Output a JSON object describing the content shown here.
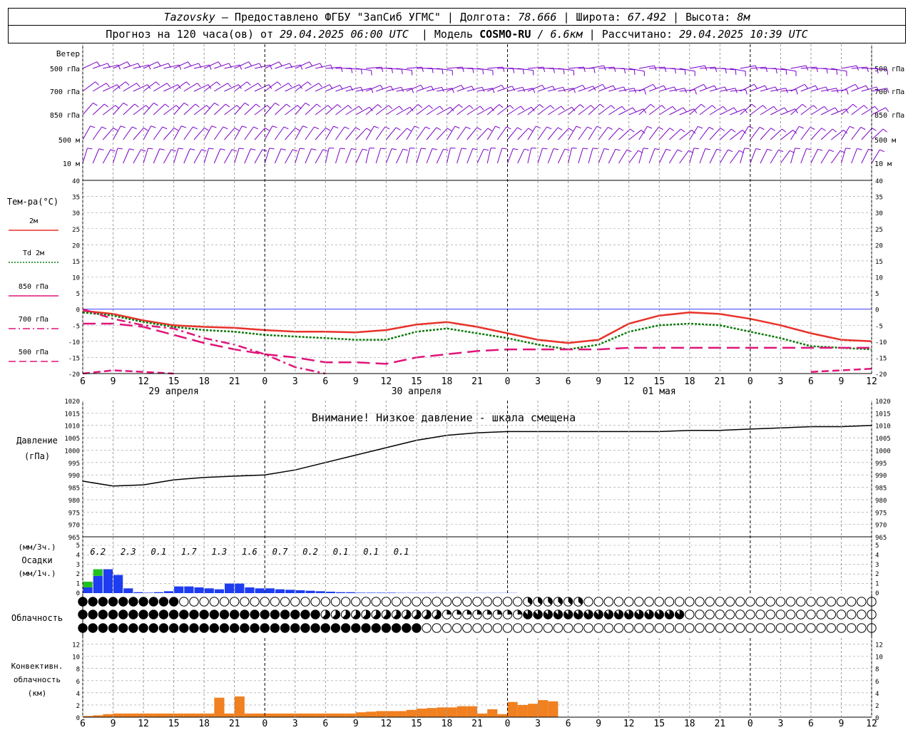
{
  "header": {
    "station": "Tazovsky",
    "provider": " — Предоставлено ФГБУ \"ЗапСиб УГМС\" | ",
    "lon_label": "Долгота: ",
    "lon_value": "78.666",
    "lat_label": " | Широта: ",
    "lat_value": "67.492",
    "alt_label": " | Высота: ",
    "alt_value": "8м",
    "forecast_label": "Прогноз на 120 часа(ов) от ",
    "forecast_start": "29.04.2025 06:00 UTC",
    "model_label": "  | Модель ",
    "model_name": "COSMO-RU",
    "model_res": " / 6.6км",
    "calc_label": " | Рассчитано: ",
    "calc_time": "29.04.2025 10:39 UTC"
  },
  "x_ticks": [
    "6",
    "9",
    "12",
    "15",
    "18",
    "21",
    "0",
    "3",
    "6",
    "9",
    "12",
    "15",
    "18",
    "21",
    "0",
    "3",
    "6",
    "9",
    "12",
    "15",
    "18",
    "21",
    "0",
    "3",
    "6",
    "9",
    "12"
  ],
  "day_labels": [
    "29 апреля",
    "30 апреля",
    "01 мая"
  ],
  "wind": {
    "title": "Ветер",
    "levels": [
      "500 гПа",
      "700 гПа",
      "850 гПа",
      "500 м",
      "10 м"
    ],
    "color": "#7a00c8"
  },
  "temperature": {
    "title": "Тем-ра(°C)",
    "legend": [
      {
        "label": "2м",
        "color": "#e8322a",
        "style": "solid"
      },
      {
        "label": "Td 2м",
        "color": "#0a7a0a",
        "style": "dotted"
      },
      {
        "label": "850 гПа",
        "color": "#e0147a",
        "style": "solid"
      },
      {
        "label": "700 гПа",
        "color": "#e0147a",
        "style": "dashdot"
      },
      {
        "label": "500 гПа",
        "color": "#e0147a",
        "style": "dashed"
      }
    ],
    "yticks": [
      "40",
      "35",
      "30",
      "25",
      "20",
      "15",
      "10",
      "5",
      "0",
      "-5",
      "-10",
      "-15",
      "-20"
    ]
  },
  "pressure": {
    "title": "Давление",
    "unit": "(гПа)",
    "warning": "Внимание! Низкое давление - шкала смещена",
    "yticks": [
      "1020",
      "1015",
      "1010",
      "1005",
      "1000",
      "995",
      "990",
      "985",
      "980",
      "975",
      "970",
      "965"
    ]
  },
  "precip": {
    "unit3": "(мм/3ч.)",
    "title": "Осадки",
    "unit1": "(мм/1ч.)",
    "totals": [
      "6.2",
      "2.3",
      "0.1",
      "1.7",
      "1.3",
      "1.6",
      "0.7",
      "0.2",
      "0.1",
      "0.1",
      "0.1"
    ],
    "yticks": [
      "5",
      "4",
      "3",
      "2",
      "1",
      "0"
    ]
  },
  "clouds": {
    "title": "Облачность"
  },
  "convective": {
    "title_1": "Конвективн.",
    "title_2": "облачность",
    "unit": "(км)",
    "yticks": [
      "12",
      "10",
      "8",
      "6",
      "4",
      "2",
      "0"
    ]
  },
  "colors": {
    "grid": "#9a9a9a",
    "zero_line": "#3c3cff",
    "rain": "#1e3cf0",
    "snow": "#22c01e",
    "conv": "#f08020",
    "pressure_line": "#000000"
  },
  "chart_data": {
    "type": "line",
    "x_unit": "hours since 29.04.2025 06:00 UTC",
    "x": [
      0,
      3,
      6,
      9,
      12,
      15,
      18,
      21,
      24,
      27,
      30,
      33,
      36,
      39,
      42,
      45,
      48,
      51,
      54,
      57,
      60,
      63,
      66,
      69,
      72,
      75,
      78
    ],
    "series": [
      {
        "name": "2м",
        "panel": "temperature",
        "values": [
          -0.5,
          -1.5,
          -3.5,
          -5,
          -5.5,
          -5.8,
          -6.5,
          -7,
          -7,
          -7.2,
          -6.5,
          -4.8,
          -4,
          -5.5,
          -7.5,
          -9.5,
          -10.5,
          -9.5,
          -4.5,
          -2,
          -1,
          -1.5,
          -3,
          -5,
          -7.5,
          -9.5,
          -10
        ]
      },
      {
        "name": "Td 2м",
        "panel": "temperature",
        "values": [
          -1,
          -2,
          -4,
          -5.5,
          -6.5,
          -7,
          -8,
          -8.5,
          -9,
          -9.5,
          -9.5,
          -7,
          -6,
          -7.5,
          -9,
          -11,
          -12.5,
          -11,
          -7,
          -5,
          -4.5,
          -5,
          -7,
          -9,
          -11.5,
          -12,
          -12.5
        ]
      },
      {
        "name": "850 гПа",
        "panel": "temperature",
        "values": [
          -4.5,
          -4.5,
          -5.5,
          -8,
          -10.5,
          -12.5,
          -14,
          -15,
          -16.5,
          -16.5,
          -17,
          -15,
          -14,
          -13,
          -12.5,
          -12.5,
          -12.5,
          -12.5,
          -12,
          -12,
          -12,
          -12,
          -12,
          -12,
          -12,
          -12,
          -12
        ]
      },
      {
        "name": "700 гПа",
        "panel": "temperature",
        "values": [
          0,
          -3,
          -5,
          -6,
          -9,
          -11,
          -14,
          -18,
          -21,
          null,
          null,
          null,
          null,
          null,
          null,
          null,
          null,
          null,
          null,
          null,
          null,
          null,
          null,
          null,
          null,
          null,
          null
        ]
      },
      {
        "name": "500 гПа",
        "panel": "temperature",
        "values": [
          -20,
          -19,
          -19.5,
          -22,
          null,
          null,
          null,
          null,
          null,
          null,
          null,
          null,
          null,
          null,
          null,
          null,
          null,
          null,
          null,
          null,
          null,
          null,
          null,
          null,
          -19.5,
          -19,
          -18.5
        ]
      },
      {
        "name": "Давление",
        "panel": "pressure",
        "values": [
          987.5,
          985.5,
          986,
          988,
          989,
          989.5,
          990,
          992,
          995,
          998,
          1001,
          1004,
          1006,
          1007,
          1007.5,
          1007.5,
          1007.5,
          1007.5,
          1007.5,
          1007.5,
          1008,
          1008,
          1008.5,
          1009,
          1009.5,
          1009.5,
          1010
        ]
      }
    ],
    "ylim_temperature": [
      -20,
      40
    ],
    "ylim_pressure": [
      965,
      1020
    ],
    "precip_rain_hourly": [
      0.6,
      1.8,
      2.5,
      1.9,
      0.5,
      0.1,
      0.05,
      0.1,
      0.2,
      0.7,
      0.7,
      0.6,
      0.5,
      0.4,
      1.0,
      1.0,
      0.6,
      0.5,
      0.5,
      0.4,
      0.35,
      0.3,
      0.25,
      0.2,
      0.15,
      0.1,
      0.1,
      0.05,
      0.05,
      0.05,
      0.05,
      0.03,
      0.03,
      0.03,
      0.03,
      0.02,
      0.02,
      0.02,
      0.02,
      0.02,
      0.02,
      0.02,
      0.02
    ],
    "precip_snow_hourly": [
      0.6,
      0.7
    ],
    "ylim_precip": [
      0,
      5
    ],
    "convective_km": [
      0.2,
      0.3,
      0.5,
      0.6,
      0.6,
      0.6,
      0.6,
      0.6,
      0.6,
      0.6,
      0.6,
      0.6,
      0.6,
      3.2,
      0.6,
      3.4,
      0.6,
      0.6,
      0.6,
      0.6,
      0.6,
      0.6,
      0.6,
      0.6,
      0.6,
      0.6,
      0.6,
      0.8,
      0.9,
      1.0,
      1.0,
      1.0,
      1.2,
      1.4,
      1.5,
      1.6,
      1.6,
      1.8,
      1.8,
      0.6,
      1.3,
      0.5,
      2.5,
      2.0,
      2.2,
      2.8,
      2.6
    ],
    "ylim_convective": [
      0,
      13
    ]
  }
}
